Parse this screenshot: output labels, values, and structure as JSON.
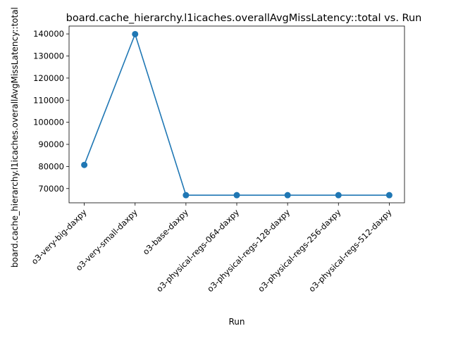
{
  "chart_data": {
    "type": "line",
    "title": "board.cache_hierarchy.l1icaches.overallAvgMissLatency::total vs. Run",
    "xlabel": "Run",
    "ylabel": "board.cache_hierarchy.l1icaches.overallAvgMissLatency::total",
    "categories": [
      "o3-very-big-daxpy",
      "o3-very-small-daxpy",
      "o3-base-daxpy",
      "o3-physical-regs-064-daxpy",
      "o3-physical-regs-128-daxpy",
      "o3-physical-regs-256-daxpy",
      "o3-physical-regs-512-daxpy"
    ],
    "series": [
      {
        "values": [
          80700,
          139900,
          67000,
          67000,
          67000,
          67000,
          67000
        ]
      }
    ],
    "yticks": [
      70000,
      80000,
      90000,
      100000,
      110000,
      120000,
      130000,
      140000
    ],
    "ylim": [
      63550,
      143550
    ],
    "grid": false,
    "marker": "circle",
    "line_color": "#1f77b4"
  }
}
